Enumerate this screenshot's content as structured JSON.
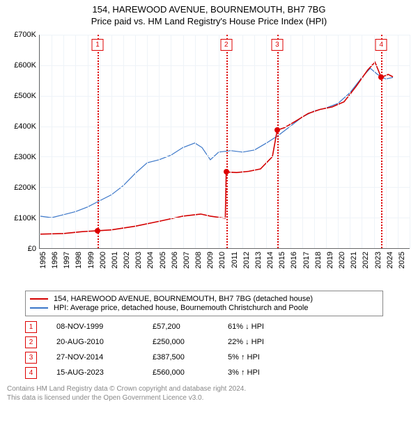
{
  "title": "154, HAREWOOD AVENUE, BOURNEMOUTH, BH7 7BG",
  "subtitle": "Price paid vs. HM Land Registry's House Price Index (HPI)",
  "chart": {
    "type": "line",
    "background_color": "#ffffff",
    "grid_color": "#eef3f8",
    "axis_color": "#666666",
    "label_fontsize": 11,
    "x": {
      "min": 1995,
      "max": 2026,
      "step": 1
    },
    "y": {
      "min": 0,
      "max": 700,
      "step": 100,
      "prefix": "£",
      "suffix": "K"
    },
    "series_subject": {
      "label": "154, HAREWOOD AVENUE, BOURNEMOUTH, BH7 7BG (detached house)",
      "color": "#d40000",
      "line_width": 1.6,
      "points": [
        [
          1995.0,
          46
        ],
        [
          1997.0,
          48
        ],
        [
          1998.5,
          54
        ],
        [
          1999.85,
          57.2
        ],
        [
          2001.0,
          60
        ],
        [
          2003.0,
          72
        ],
        [
          2005.0,
          88
        ],
        [
          2007.0,
          105
        ],
        [
          2008.5,
          112
        ],
        [
          2009.3,
          105
        ],
        [
          2010.55,
          98
        ],
        [
          2010.63,
          250
        ],
        [
          2011.5,
          248
        ],
        [
          2012.5,
          252
        ],
        [
          2013.5,
          260
        ],
        [
          2014.5,
          300
        ],
        [
          2014.9,
          387.5
        ],
        [
          2015.5,
          395
        ],
        [
          2016.5,
          418
        ],
        [
          2017.5,
          442
        ],
        [
          2018.5,
          455
        ],
        [
          2019.5,
          463
        ],
        [
          2020.5,
          480
        ],
        [
          2021.5,
          530
        ],
        [
          2022.5,
          585
        ],
        [
          2023.1,
          610
        ],
        [
          2023.62,
          560
        ],
        [
          2024.2,
          570
        ],
        [
          2024.6,
          562
        ]
      ]
    },
    "series_hpi": {
      "label": "HPI: Average price, detached house, Bournemouth Christchurch and Poole",
      "color": "#3a76c8",
      "line_width": 1.2,
      "points": [
        [
          1995.0,
          105
        ],
        [
          1996.0,
          100
        ],
        [
          1997.0,
          110
        ],
        [
          1998.0,
          120
        ],
        [
          1999.0,
          135
        ],
        [
          2000.0,
          155
        ],
        [
          2001.0,
          175
        ],
        [
          2002.0,
          205
        ],
        [
          2003.0,
          245
        ],
        [
          2004.0,
          280
        ],
        [
          2005.0,
          290
        ],
        [
          2006.0,
          305
        ],
        [
          2007.0,
          330
        ],
        [
          2008.0,
          345
        ],
        [
          2008.6,
          330
        ],
        [
          2009.3,
          290
        ],
        [
          2010.0,
          315
        ],
        [
          2011.0,
          320
        ],
        [
          2012.0,
          315
        ],
        [
          2013.0,
          322
        ],
        [
          2014.0,
          345
        ],
        [
          2015.0,
          370
        ],
        [
          2016.0,
          400
        ],
        [
          2017.0,
          430
        ],
        [
          2018.0,
          450
        ],
        [
          2019.0,
          460
        ],
        [
          2020.0,
          475
        ],
        [
          2021.0,
          510
        ],
        [
          2022.0,
          560
        ],
        [
          2022.7,
          590
        ],
        [
          2023.3,
          570
        ],
        [
          2024.0,
          555
        ],
        [
          2024.6,
          560
        ]
      ]
    },
    "sales": [
      {
        "n": "1",
        "year_frac": 1999.85,
        "value": 57.2,
        "date": "08-NOV-1999",
        "price": "£57,200",
        "delta": "61% ↓ HPI"
      },
      {
        "n": "2",
        "year_frac": 2010.63,
        "value": 250,
        "date": "20-AUG-2010",
        "price": "£250,000",
        "delta": "22% ↓ HPI"
      },
      {
        "n": "3",
        "year_frac": 2014.9,
        "value": 387.5,
        "date": "27-NOV-2014",
        "price": "£387,500",
        "delta": "5% ↑ HPI"
      },
      {
        "n": "4",
        "year_frac": 2023.62,
        "value": 560,
        "date": "15-AUG-2023",
        "price": "£560,000",
        "delta": "3% ↑ HPI"
      }
    ]
  },
  "footer": {
    "line1": "Contains HM Land Registry data © Crown copyright and database right 2024.",
    "line2": "This data is licensed under the Open Government Licence v3.0."
  }
}
